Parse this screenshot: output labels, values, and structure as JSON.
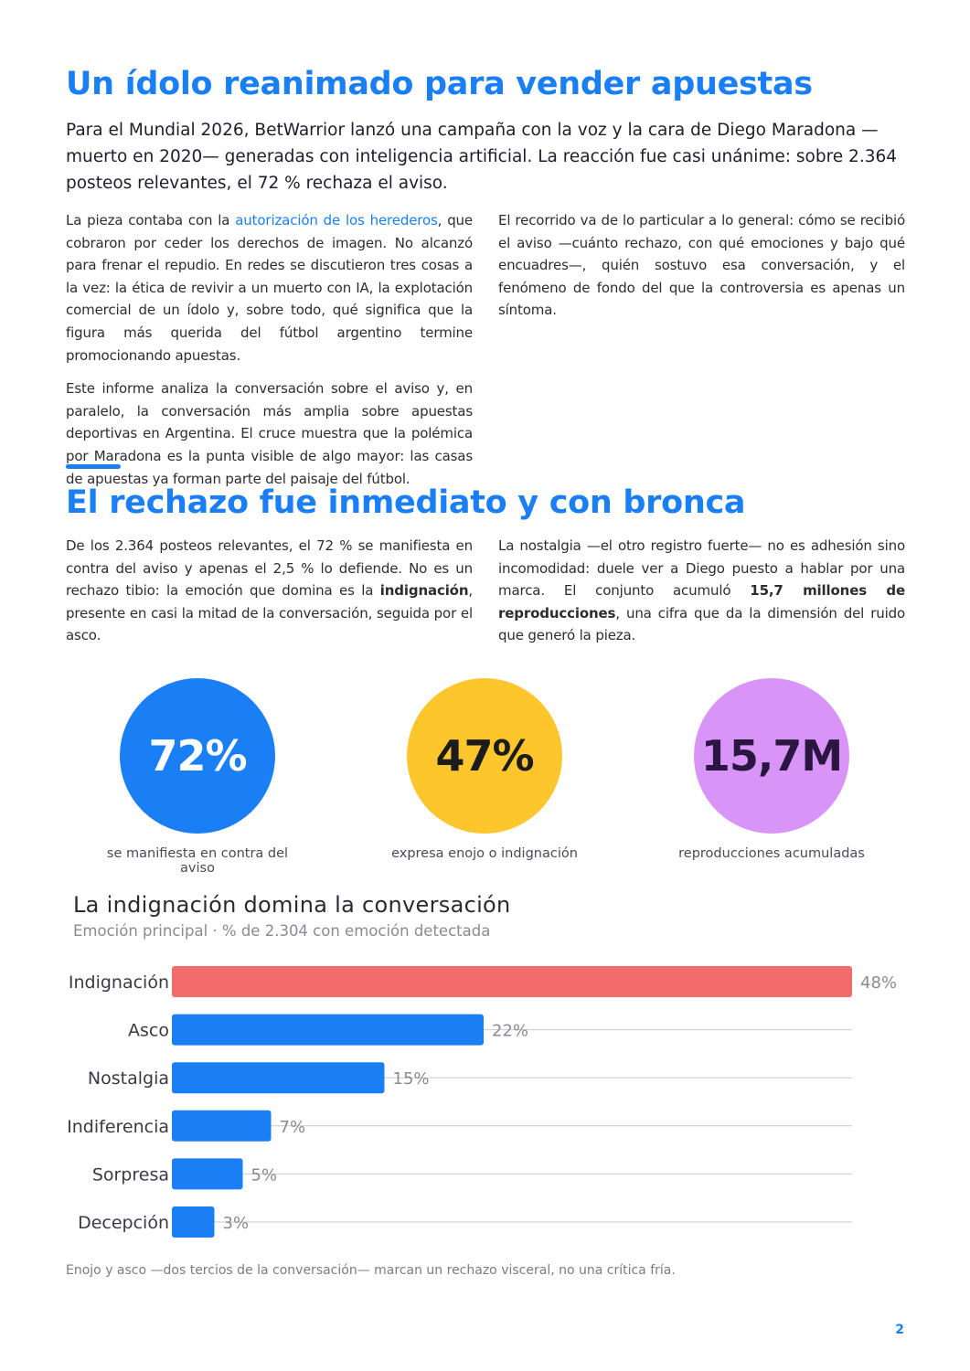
{
  "section1": {
    "title": "Un ídolo reanimado para vender apuestas",
    "lead": "Para el Mundial 2026, BetWarrior lanzó una campaña con la voz y la cara de Diego Maradona —muerto en 2020— generadas con inteligencia artificial. La reacción fue casi unánime: sobre 2.364 posteos relevantes, el 72 % rechaza el aviso.",
    "p1_pre": "La pieza contaba con la ",
    "p1_link": "autorización de los herederos",
    "p1_post": ", que cobraron por ceder los derechos de imagen. No alcanzó para frenar el repudio. En redes se discutieron tres cosas a la vez: la ética de revivir a un muerto con IA, la explotación comercial de un ídolo y, sobre todo, qué significa que la figura más querida del fútbol argentino termine promocionando apuestas.",
    "p2": "Este informe analiza la conversación sobre el aviso y, en paralelo, la conversación más amplia sobre apuestas deportivas en Argentina. El cruce muestra que la polémica por Maradona es la punta visible de algo mayor: las casas de apuestas ya forman parte del paisaje del fútbol.",
    "p3": "El recorrido va de lo particular a lo general: cómo se recibió el aviso —cuánto rechazo, con qué emociones y bajo qué encuadres—, quién sostuvo esa conversación, y el fenómeno de fondo del que la controversia es apenas un síntoma."
  },
  "section2": {
    "title": "El rechazo fue inmediato y con bronca",
    "p1_a": "De los 2.364 posteos relevantes, el 72 % se manifiesta en contra del aviso y apenas el 2,5 % lo defiende. No es un rechazo tibio: la emoción que domina es la ",
    "p1_bold": "indignación",
    "p1_b": ", presente en casi la mitad de la conversación, seguida por el asco.",
    "p2_a": "La nostalgia —el otro registro fuerte— no es adhesión sino incomodidad: duele ver a Diego puesto a hablar por una marca. El conjunto acumuló ",
    "p2_bold": "15,7 millones de reproducciones",
    "p2_b": ", una cifra que da la dimensión del ruido que generó la pieza."
  },
  "stats": [
    {
      "value": "72%",
      "caption": "se manifiesta en contra del aviso",
      "color": "#1a7ff5",
      "text_color": "#ffffff"
    },
    {
      "value": "47%",
      "caption": "expresa enojo o indignación",
      "color": "#fcc62c",
      "text_color": "#1c1c1c"
    },
    {
      "value": "15,7M",
      "caption": "reproducciones acumuladas",
      "color": "#d994f7",
      "text_color": "#2a1640"
    }
  ],
  "chart_data": {
    "type": "bar",
    "orientation": "horizontal",
    "title": "La indignación domina la conversación",
    "subtitle": "Emoción principal · % de 2.304 con emoción detectada",
    "categories": [
      "Indignación",
      "Asco",
      "Nostalgia",
      "Indiferencia",
      "Sorpresa",
      "Decepción"
    ],
    "values": [
      48,
      22,
      15,
      7,
      5,
      3
    ],
    "value_labels": [
      "48%",
      "22%",
      "15%",
      "7%",
      "5%",
      "3%"
    ],
    "colors": [
      "#f46b6b",
      "#1a7ff5",
      "#1a7ff5",
      "#1a7ff5",
      "#1a7ff5",
      "#1a7ff5"
    ],
    "xlim": [
      0,
      48
    ],
    "grid": "horizontal lines per row"
  },
  "note": "Enojo y asco —dos tercios de la conversación— marcan un rechazo visceral, no una crítica fría.",
  "page_number": "2"
}
